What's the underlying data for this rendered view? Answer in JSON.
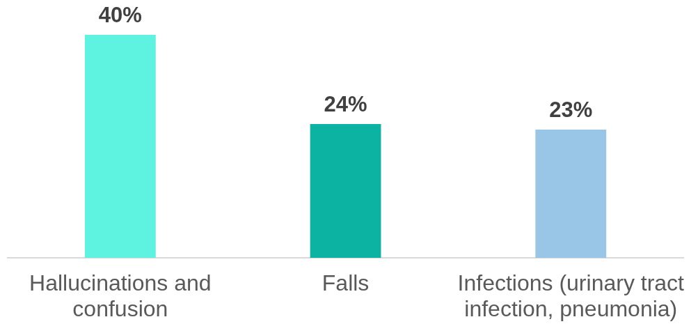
{
  "chart_data": {
    "type": "bar",
    "categories": [
      "Hallucinations and confusion",
      "Falls",
      "Infections (urinary tract infection, pneumonia)"
    ],
    "values": [
      40,
      24,
      23
    ],
    "colors": [
      "#5ef2e0",
      "#0cb2a2",
      "#99c5e6"
    ],
    "value_labels": [
      "40%",
      "24%",
      "23%"
    ]
  }
}
